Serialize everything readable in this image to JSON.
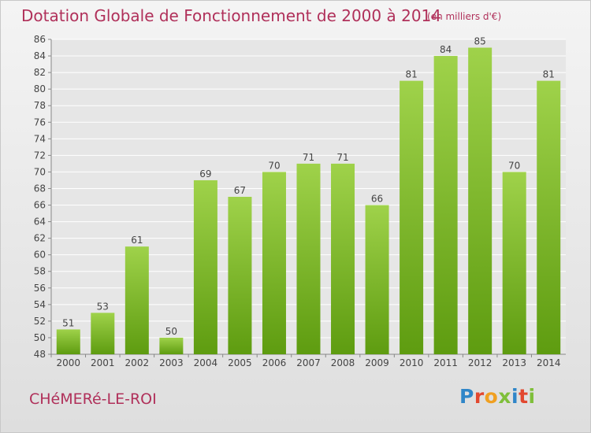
{
  "header": {
    "title": "Dotation Globale de Fonctionnement de 2000 à 2014",
    "subtitle": "(en milliers d'€)"
  },
  "footer": {
    "commune": "CHéMERé-LE-ROI",
    "logo_letters": [
      "P",
      "r",
      "o",
      "x",
      "i",
      "t",
      "i"
    ]
  },
  "colors": {
    "title": "#b0305a",
    "bar_top": "#9fd24a",
    "bar_bottom": "#5e9c10",
    "grid": "#ffffff",
    "axis_text": "#444444"
  },
  "chart_data": {
    "type": "bar",
    "title": "Dotation Globale de Fonctionnement de 2000 à 2014",
    "subtitle": "(en milliers d'€)",
    "xlabel": "",
    "ylabel": "",
    "categories": [
      "2000",
      "2001",
      "2002",
      "2003",
      "2004",
      "2005",
      "2006",
      "2007",
      "2008",
      "2009",
      "2010",
      "2011",
      "2012",
      "2013",
      "2014"
    ],
    "values": [
      51,
      53,
      61,
      50,
      69,
      67,
      70,
      71,
      71,
      66,
      81,
      84,
      85,
      70,
      81
    ],
    "ylim": [
      48,
      86
    ],
    "yticks": [
      48,
      50,
      52,
      54,
      56,
      58,
      60,
      62,
      64,
      66,
      68,
      70,
      72,
      74,
      76,
      78,
      80,
      82,
      84,
      86
    ],
    "grid": true,
    "legend": "none"
  }
}
